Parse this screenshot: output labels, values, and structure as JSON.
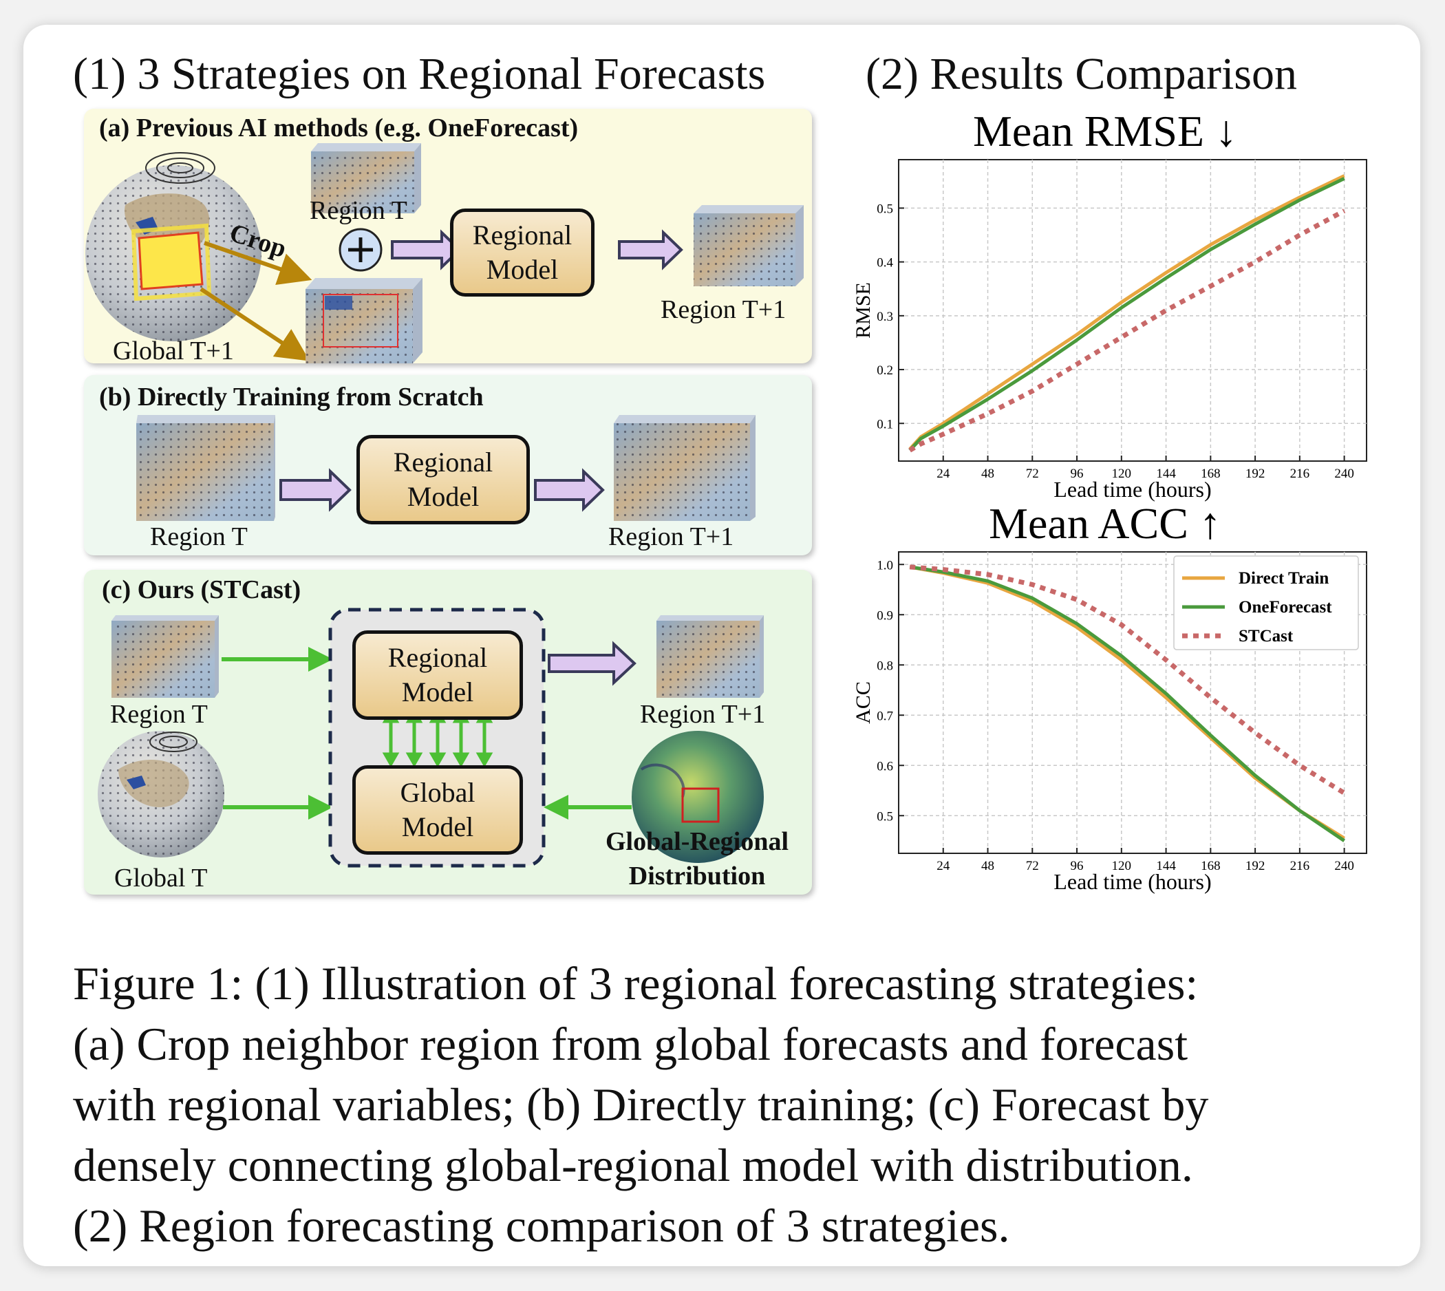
{
  "section1_title": "(1) 3 Strategies on Regional Forecasts",
  "section2_title": "(2) Results Comparison",
  "panel_a": {
    "label": "(a) Previous AI methods (e.g. OneForecast)",
    "crop_label": "Crop",
    "region_t": "Region T",
    "global_t1": "Global T+1",
    "model": "Regional\nModel",
    "region_t1": "Region T+1",
    "plus_symbol": "+"
  },
  "panel_b": {
    "label": "(b) Directly Training from Scratch",
    "region_t": "Region T",
    "model": "Regional\nModel",
    "region_t1": "Region T+1"
  },
  "panel_c": {
    "label": "(c) Ours (STCast)",
    "region_t": "Region T",
    "global_t": "Global T",
    "regional_model": "Regional\nModel",
    "global_model": "Global\nModel",
    "region_t1": "Region T+1",
    "distribution": "Global-Regional\nDistribution"
  },
  "colors": {
    "panel_a_bg": "#fbfae0",
    "panel_b_bg": "#eef8f0",
    "panel_c_bg": "#e9f7e4",
    "direct_train": "#e8a640",
    "oneforecast": "#4a9a3c",
    "stcast": "#c86868",
    "green_arrow": "#5bc840",
    "purple_arrow": "#ddc8f0"
  },
  "chart_data": [
    {
      "type": "line",
      "title": "Mean RMSE ↓",
      "xlabel": "Lead time (hours)",
      "ylabel": "RMSE",
      "xlim": [
        0,
        252
      ],
      "ylim": [
        0.03,
        0.59
      ],
      "xticks": [
        24,
        48,
        72,
        96,
        120,
        144,
        168,
        192,
        216,
        240
      ],
      "yticks": [
        0.1,
        0.2,
        0.3,
        0.4,
        0.5
      ],
      "grid": true,
      "x": [
        6,
        12,
        24,
        48,
        72,
        96,
        120,
        144,
        168,
        192,
        216,
        240
      ],
      "series": [
        {
          "name": "Direct Train",
          "style": "solid",
          "values": [
            0.052,
            0.075,
            0.1,
            0.155,
            0.21,
            0.265,
            0.325,
            0.38,
            0.432,
            0.478,
            0.52,
            0.56
          ]
        },
        {
          "name": "OneForecast",
          "style": "solid",
          "values": [
            0.05,
            0.072,
            0.095,
            0.145,
            0.198,
            0.255,
            0.315,
            0.37,
            0.423,
            0.47,
            0.515,
            0.555
          ]
        },
        {
          "name": "STCast",
          "style": "dotted",
          "values": [
            0.05,
            0.062,
            0.08,
            0.118,
            0.16,
            0.21,
            0.26,
            0.31,
            0.355,
            0.4,
            0.45,
            0.495
          ]
        }
      ]
    },
    {
      "type": "line",
      "title": "Mean ACC ↑",
      "xlabel": "Lead time (hours)",
      "ylabel": "ACC",
      "xlim": [
        0,
        252
      ],
      "ylim": [
        0.425,
        1.025
      ],
      "xticks": [
        24,
        48,
        72,
        96,
        120,
        144,
        168,
        192,
        216,
        240
      ],
      "yticks": [
        0.5,
        0.6,
        0.7,
        0.8,
        0.9,
        1.0
      ],
      "grid": true,
      "legend_position": "top-right",
      "x": [
        6,
        24,
        48,
        72,
        96,
        120,
        144,
        168,
        192,
        216,
        240
      ],
      "series": [
        {
          "name": "Direct Train",
          "style": "solid",
          "values": [
            0.995,
            0.983,
            0.963,
            0.927,
            0.875,
            0.81,
            0.735,
            0.655,
            0.575,
            0.51,
            0.455
          ]
        },
        {
          "name": "OneForecast",
          "style": "solid",
          "values": [
            0.995,
            0.985,
            0.967,
            0.933,
            0.882,
            0.818,
            0.743,
            0.66,
            0.58,
            0.51,
            0.45
          ]
        },
        {
          "name": "STCast",
          "style": "dotted",
          "values": [
            0.995,
            0.99,
            0.98,
            0.96,
            0.93,
            0.88,
            0.81,
            0.735,
            0.665,
            0.6,
            0.545
          ]
        }
      ]
    }
  ],
  "caption": [
    "Figure 1: (1) Illustration of 3 regional forecasting strategies:",
    "(a) Crop neighbor region from global forecasts and forecast",
    "with regional variables; (b) Directly training; (c) Forecast by",
    "densely connecting global-regional model with distribution.",
    "(2) Region forecasting comparison of 3 strategies."
  ]
}
